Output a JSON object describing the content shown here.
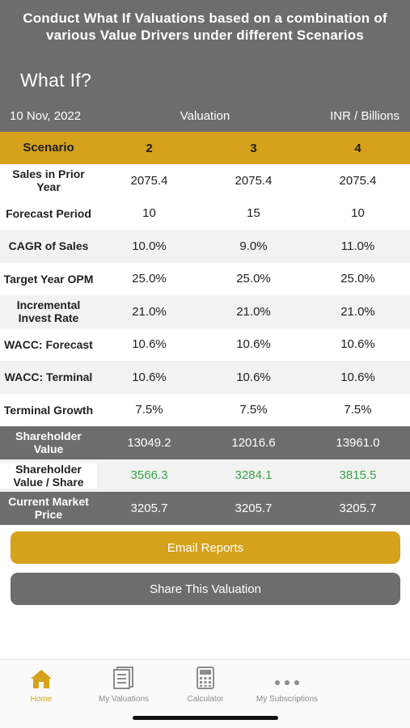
{
  "header": {
    "promo": "Conduct What If Valuations based on a combination of various Value Drivers under different Scenarios",
    "title": "What If?",
    "date": "10 Nov, 2022",
    "section": "Valuation",
    "unit": "INR / Billions"
  },
  "table": {
    "head": {
      "label": "Scenario",
      "cols": [
        "2",
        "3",
        "4"
      ]
    },
    "rows": [
      {
        "label": "Sales in Prior Year",
        "values": [
          "2075.4",
          "2075.4",
          "2075.4"
        ]
      },
      {
        "label": "Forecast Period",
        "values": [
          "10",
          "15",
          "10"
        ]
      },
      {
        "label": "CAGR of Sales",
        "values": [
          "10.0%",
          "9.0%",
          "11.0%"
        ]
      },
      {
        "label": "Target Year OPM",
        "values": [
          "25.0%",
          "25.0%",
          "25.0%"
        ]
      },
      {
        "label": "Incremental Invest Rate",
        "values": [
          "21.0%",
          "21.0%",
          "21.0%"
        ]
      },
      {
        "label": "WACC: Forecast",
        "values": [
          "10.6%",
          "10.6%",
          "10.6%"
        ]
      },
      {
        "label": "WACC: Terminal",
        "values": [
          "10.6%",
          "10.6%",
          "10.6%"
        ]
      },
      {
        "label": "Terminal Growth",
        "values": [
          "7.5%",
          "7.5%",
          "7.5%"
        ]
      },
      {
        "label": "Shareholder Value",
        "values": [
          "13049.2",
          "12016.6",
          "13961.0"
        ]
      },
      {
        "label": "Shareholder Value / Share",
        "values": [
          "3566.3",
          "3284.1",
          "3815.5"
        ]
      },
      {
        "label": "Current Market Price",
        "values": [
          "3205.7",
          "3205.7",
          "3205.7"
        ]
      }
    ]
  },
  "buttons": {
    "email": "Email Reports",
    "share": "Share This Valuation"
  },
  "tabs": {
    "home": {
      "label": "Home",
      "icon": "home-icon"
    },
    "valuations": {
      "label": "My Valuations",
      "icon": "document-icon"
    },
    "calculator": {
      "label": "Calculator",
      "icon": "calculator-icon"
    },
    "subscriptions": {
      "label": "My Subscriptions",
      "icon": "more-dots-icon"
    }
  },
  "colors": {
    "accent": "#d6a21b",
    "header": "#6d6d6d",
    "positive": "#3aa14a"
  }
}
